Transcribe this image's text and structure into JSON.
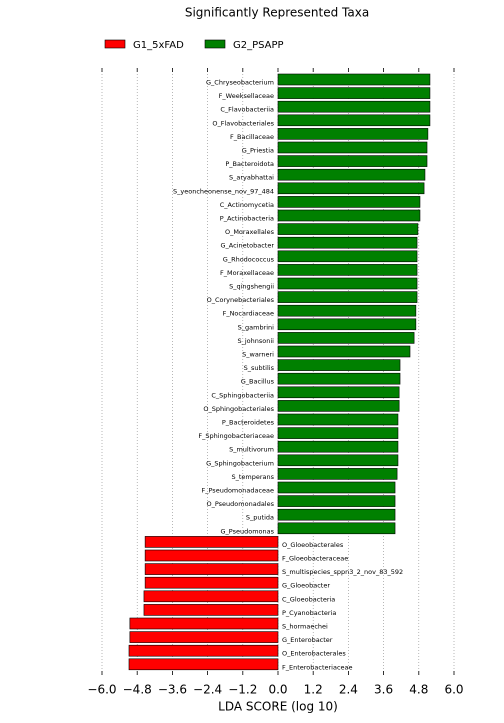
{
  "chart_data": {
    "type": "bar",
    "orientation": "horizontal",
    "title": "Significantly Represented Taxa",
    "xlabel": "LDA SCORE (log 10)",
    "categories": [
      "G_Chryseobacterium",
      "F_Weeksellaceae",
      "C_Flavobacteriia",
      "O_Flavobacteriales",
      "F_Bacillaceae",
      "G_Priestia",
      "P_Bacteroidota",
      "S_aryabhattai",
      "S_yeoncheonense_nov_97_484",
      "C_Actinomycetia",
      "P_Actinobacteria",
      "O_Moraxellales",
      "G_Acinetobacter",
      "G_Rhodococcus",
      "F_Moraxellaceae",
      "S_qingshengii",
      "O_Corynebacteriales",
      "F_Nocardiaceae",
      "S_gambrini",
      "S_johnsonii",
      "S_warneri",
      "S_subtilis",
      "G_Bacillus",
      "C_Sphingobacteriia",
      "O_Sphingobacteriales",
      "P_Bacteroidetes",
      "F_Sphingobacteriaceae",
      "S_multivorum",
      "G_Sphingobacterium",
      "S_temperans",
      "F_Pseudomonadaceae",
      "O_Pseudomonadales",
      "S_putida",
      "G_Pseudomonas",
      "O_Gloeobacterales",
      "F_Gloeobacteraceae",
      "S_multispecies_sppn3_2_nov_83_592",
      "G_Gloeobacter",
      "C_Gloeobacteria",
      "P_Cyanobacteria",
      "S_hormaechei",
      "G_Enterobacter",
      "O_Enterobacterales",
      "F_Enterobacteriaceae"
    ],
    "series": [
      {
        "name": "G1_5xFAD",
        "color": "#ff0000",
        "values": [
          null,
          null,
          null,
          null,
          null,
          null,
          null,
          null,
          null,
          null,
          null,
          null,
          null,
          null,
          null,
          null,
          null,
          null,
          null,
          null,
          null,
          null,
          null,
          null,
          null,
          null,
          null,
          null,
          null,
          null,
          null,
          null,
          null,
          null,
          -4.53,
          -4.53,
          -4.53,
          -4.53,
          -4.57,
          -4.57,
          -5.05,
          -5.05,
          -5.08,
          -5.08
        ]
      },
      {
        "name": "G2_PSAPP",
        "color": "#008000",
        "values": [
          5.18,
          5.18,
          5.18,
          5.18,
          5.11,
          5.08,
          5.08,
          5.01,
          4.98,
          4.84,
          4.84,
          4.77,
          4.74,
          4.74,
          4.74,
          4.74,
          4.74,
          4.7,
          4.7,
          4.64,
          4.5,
          4.16,
          4.16,
          4.13,
          4.13,
          4.09,
          4.09,
          4.09,
          4.09,
          4.06,
          3.99,
          3.99,
          3.99,
          3.99,
          null,
          null,
          null,
          null,
          null,
          null,
          null,
          null,
          null,
          null
        ]
      }
    ],
    "xlim": [
      -6.0,
      6.0
    ],
    "xticks": [
      {
        "value": -6.0,
        "label": "−6.0"
      },
      {
        "value": -4.8,
        "label": "−4.8"
      },
      {
        "value": -3.6,
        "label": "−3.6"
      },
      {
        "value": -2.4,
        "label": "−2.4"
      },
      {
        "value": -1.2,
        "label": "−1.2"
      },
      {
        "value": 0,
        "label": "0.0"
      },
      {
        "value": 1.2,
        "label": "1.2"
      },
      {
        "value": 2.4,
        "label": "2.4"
      },
      {
        "value": 3.6,
        "label": "3.6"
      },
      {
        "value": 4.8,
        "label": "4.8"
      },
      {
        "value": 6.0,
        "label": "6.0"
      }
    ],
    "grid": true
  }
}
